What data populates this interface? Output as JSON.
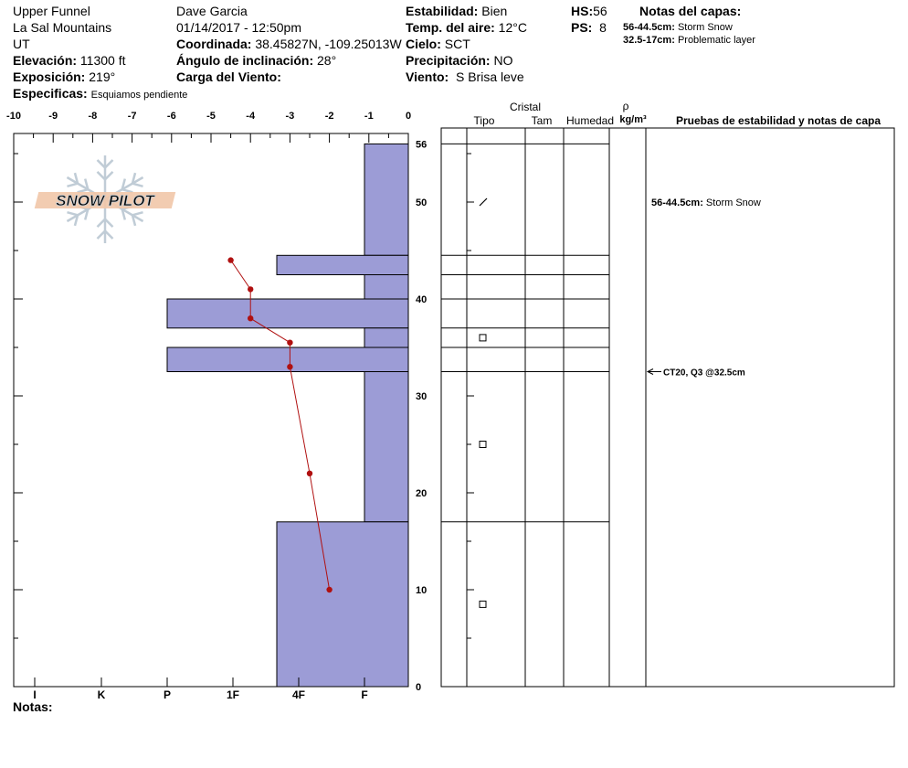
{
  "header": {
    "location_name": "Upper Funnel",
    "range": "La Sal Mountains",
    "state": "UT",
    "elevation_label": "Elevación:",
    "elevation_value": "11300 ft",
    "aspect_label": "Exposición:",
    "aspect_value": "219°",
    "specifics_label": "Especificas:",
    "specifics_value": "Esquiamos pendiente",
    "observer": "Dave Garcia",
    "datetime": "01/14/2017 - 12:50pm",
    "coord_label": "Coordinada:",
    "coord_value": "38.45827N, -109.25013W",
    "slope_label": "Ángulo de inclinación:",
    "slope_value": "28°",
    "wind_load_label": "Carga del Viento:",
    "wind_load_value": "",
    "stability_label": "Estabilidad:",
    "stability_value": "Bien",
    "air_temp_label": "Temp. del aire:",
    "air_temp_value": "12°C",
    "sky_label": "Cielo:",
    "sky_value": "SCT",
    "precip_label": "Precipitación:",
    "precip_value": "NO",
    "wind_label": "Viento:",
    "wind_value": "S Brisa leve",
    "hs_label": "HS:",
    "hs_value": "56",
    "ps_label": "PS:",
    "ps_value": "8",
    "layer_notes_title": "Notas del capas:",
    "layer_notes": [
      {
        "range": "56-44.5cm:",
        "text": "Storm Snow"
      },
      {
        "range": "32.5-17cm:",
        "text": "Problematic layer"
      }
    ]
  },
  "logo_text": "SNOW PILOT",
  "notes_label": "Notas:",
  "colors": {
    "hardness_fill": "#9c9cd6",
    "temp_line": "#b01010"
  },
  "chart_data": {
    "type": "snow-profile",
    "temp_axis": {
      "ticks": [
        "-10",
        "-9",
        "-8",
        "-7",
        "-6",
        "-5",
        "-4",
        "-3",
        "-2",
        "-1",
        "0"
      ],
      "range": [
        -10,
        0
      ]
    },
    "depth_axis": {
      "ticks": [
        "56",
        "50",
        "40",
        "30",
        "20",
        "10",
        "0"
      ],
      "range": [
        0,
        56
      ]
    },
    "hardness_axis": {
      "labels": [
        "I",
        "K",
        "P",
        "1F",
        "4F",
        "F"
      ]
    },
    "hardness_layers": [
      {
        "top": 56,
        "bottom": 44.5,
        "hardness": "F"
      },
      {
        "top": 44.5,
        "bottom": 42.5,
        "hardness": "4F"
      },
      {
        "top": 42.5,
        "bottom": 40,
        "hardness": "F"
      },
      {
        "top": 40,
        "bottom": 37,
        "hardness": "P"
      },
      {
        "top": 37,
        "bottom": 35,
        "hardness": "F"
      },
      {
        "top": 35,
        "bottom": 32.5,
        "hardness": "P"
      },
      {
        "top": 32.5,
        "bottom": 17,
        "hardness": "F"
      },
      {
        "top": 17,
        "bottom": 0,
        "hardness": "4F"
      }
    ],
    "temperature_profile": [
      {
        "depth": 44,
        "temp": -4.5
      },
      {
        "depth": 41,
        "temp": -4.0
      },
      {
        "depth": 38,
        "temp": -4.0
      },
      {
        "depth": 35.5,
        "temp": -3.0
      },
      {
        "depth": 33,
        "temp": -3.0
      },
      {
        "depth": 22,
        "temp": -2.5
      },
      {
        "depth": 10,
        "temp": -2.0
      }
    ],
    "column_headers": {
      "cristal": "Cristal",
      "tipo": "Tipo",
      "tam": "Tam",
      "humedad": "Humedad",
      "rho": "ρ",
      "density_unit": "kg/m³",
      "tests": "Pruebas de estabilidad y notas de capa"
    },
    "layer_boundaries": [
      56,
      44.5,
      42.5,
      40,
      37,
      35,
      32.5,
      17,
      0
    ],
    "crystal_symbols": [
      {
        "depth": 50,
        "symbol": "decomposing"
      },
      {
        "depth": 36,
        "symbol": "faceted"
      },
      {
        "depth": 25,
        "symbol": "faceted"
      },
      {
        "depth": 8.5,
        "symbol": "faceted"
      }
    ],
    "layer_annotations": [
      {
        "depth": 50,
        "range": "56-44.5cm:",
        "text": "Storm Snow"
      }
    ],
    "stability_tests": [
      {
        "depth": 32.5,
        "text": "CT20, Q3 @32.5cm"
      }
    ]
  }
}
